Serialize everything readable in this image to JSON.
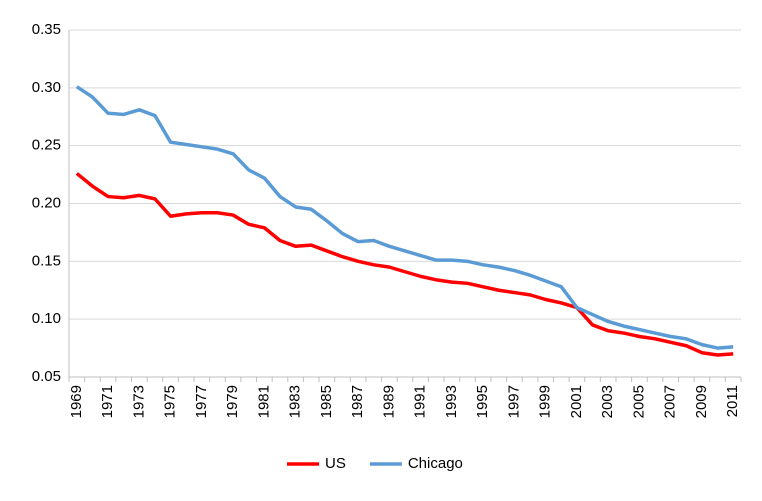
{
  "chart_data": {
    "type": "line",
    "categories": [
      "1969",
      null,
      "1971",
      null,
      "1973",
      null,
      "1975",
      null,
      "1977",
      null,
      "1979",
      null,
      "1981",
      null,
      "1983",
      null,
      "1985",
      null,
      "1987",
      null,
      "1989",
      null,
      "1991",
      null,
      "1993",
      null,
      "1995",
      null,
      "1997",
      null,
      "1999",
      null,
      "2001",
      null,
      "2003",
      null,
      "2005",
      null,
      "2007",
      null,
      "2009",
      null,
      "2011"
    ],
    "series": [
      {
        "name": "US",
        "color": "#ff0000",
        "values": [
          0.226,
          0.215,
          0.206,
          0.205,
          0.207,
          0.204,
          0.189,
          0.191,
          0.192,
          0.192,
          0.19,
          0.182,
          0.179,
          0.168,
          0.163,
          0.164,
          0.159,
          0.154,
          0.15,
          0.147,
          0.145,
          0.141,
          0.137,
          0.134,
          0.132,
          0.131,
          0.128,
          0.125,
          0.123,
          0.121,
          0.117,
          0.114,
          0.11,
          0.095,
          0.09,
          0.088,
          0.085,
          0.083,
          0.08,
          0.077,
          0.071,
          0.069,
          0.07
        ]
      },
      {
        "name": "Chicago",
        "color": "#5b9bd5",
        "values": [
          0.301,
          0.292,
          0.278,
          0.277,
          0.281,
          0.276,
          0.253,
          0.251,
          0.249,
          0.247,
          0.243,
          0.229,
          0.222,
          0.206,
          0.197,
          0.195,
          0.185,
          0.174,
          0.167,
          0.168,
          0.163,
          0.159,
          0.155,
          0.151,
          0.151,
          0.15,
          0.147,
          0.145,
          0.142,
          0.138,
          0.133,
          0.128,
          0.11,
          0.104,
          0.098,
          0.094,
          0.091,
          0.088,
          0.085,
          0.083,
          0.078,
          0.075,
          0.076
        ]
      }
    ],
    "ylim": [
      0.05,
      0.35
    ],
    "yticks": [
      {
        "value": 0.05,
        "label": "0.05"
      },
      {
        "value": 0.1,
        "label": "0.10"
      },
      {
        "value": 0.15,
        "label": "0.15"
      },
      {
        "value": 0.2,
        "label": "0.20"
      },
      {
        "value": 0.25,
        "label": "0.25"
      },
      {
        "value": 0.3,
        "label": "0.30"
      },
      {
        "value": 0.35,
        "label": "0.35"
      }
    ],
    "grid": true,
    "legend": "bottom"
  }
}
